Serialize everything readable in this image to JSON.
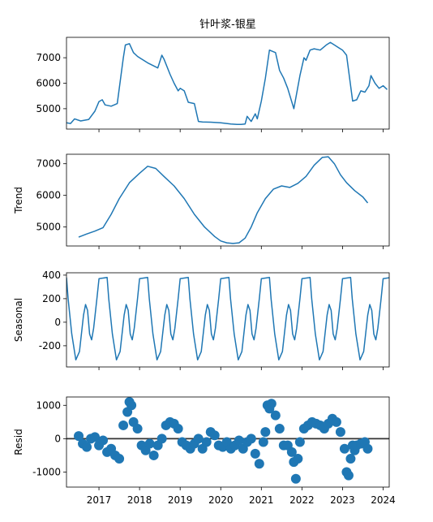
{
  "chart_data": [
    {
      "type": "line",
      "title": "针叶浆-银星",
      "ylabel": "",
      "xlim": [
        2016.2,
        2024.15
      ],
      "ylim": [
        4200,
        7800
      ],
      "yticks": [
        5000,
        6000,
        7000
      ],
      "xticks": [
        2017,
        2018,
        2019,
        2020,
        2021,
        2022,
        2023,
        2024
      ],
      "x": [
        2016.2,
        2016.3,
        2016.4,
        2016.55,
        2016.75,
        2016.9,
        2017.0,
        2017.08,
        2017.15,
        2017.3,
        2017.45,
        2017.6,
        2017.65,
        2017.75,
        2017.85,
        2017.95,
        2018.0,
        2018.2,
        2018.45,
        2018.55,
        2018.6,
        2018.75,
        2018.85,
        2018.95,
        2019.0,
        2019.1,
        2019.2,
        2019.35,
        2019.45,
        2019.55,
        2019.75,
        2020.0,
        2020.25,
        2020.4,
        2020.5,
        2020.6,
        2020.65,
        2020.75,
        2020.85,
        2020.9,
        2021.0,
        2021.1,
        2021.2,
        2021.35,
        2021.45,
        2021.55,
        2021.65,
        2021.8,
        2021.95,
        2022.05,
        2022.1,
        2022.2,
        2022.3,
        2022.45,
        2022.6,
        2022.7,
        2022.8,
        2022.9,
        2023.0,
        2023.1,
        2023.15,
        2023.25,
        2023.35,
        2023.45,
        2023.55,
        2023.65,
        2023.7,
        2023.8,
        2023.9,
        2024.0,
        2024.1
      ],
      "values": [
        4450,
        4420,
        4600,
        4520,
        4580,
        4900,
        5280,
        5350,
        5150,
        5100,
        5200,
        7000,
        7500,
        7550,
        7200,
        7050,
        7000,
        6800,
        6600,
        7100,
        6950,
        6350,
        6000,
        5700,
        5800,
        5700,
        5250,
        5200,
        4500,
        4480,
        4470,
        4450,
        4400,
        4380,
        4380,
        4400,
        4700,
        4500,
        4800,
        4600,
        5300,
        6200,
        7300,
        7200,
        6500,
        6200,
        5800,
        5000,
        6300,
        7000,
        6900,
        7300,
        7350,
        7300,
        7500,
        7600,
        7500,
        7400,
        7300,
        7100,
        6500,
        5300,
        5350,
        5700,
        5650,
        5900,
        6300,
        6000,
        5800,
        5900,
        5750
      ]
    },
    {
      "type": "line",
      "ylabel": "Trend",
      "xlim": [
        2016.2,
        2024.15
      ],
      "ylim": [
        4400,
        7300
      ],
      "yticks": [
        5000,
        6000,
        7000
      ],
      "xticks": [
        2017,
        2018,
        2019,
        2020,
        2021,
        2022,
        2023,
        2024
      ],
      "x": [
        2016.5,
        2016.7,
        2016.9,
        2017.1,
        2017.3,
        2017.5,
        2017.75,
        2018.0,
        2018.2,
        2018.4,
        2018.6,
        2018.85,
        2019.1,
        2019.35,
        2019.6,
        2019.85,
        2020.0,
        2020.15,
        2020.3,
        2020.45,
        2020.6,
        2020.75,
        2020.9,
        2021.1,
        2021.3,
        2021.5,
        2021.7,
        2021.9,
        2022.1,
        2022.3,
        2022.5,
        2022.65,
        2022.8,
        2022.95,
        2023.1,
        2023.3,
        2023.5,
        2023.62
      ],
      "values": [
        4680,
        4780,
        4870,
        4980,
        5400,
        5900,
        6400,
        6700,
        6920,
        6850,
        6600,
        6300,
        5900,
        5400,
        5000,
        4700,
        4560,
        4500,
        4480,
        4500,
        4650,
        5000,
        5450,
        5900,
        6200,
        6300,
        6250,
        6380,
        6600,
        6950,
        7200,
        7220,
        7000,
        6650,
        6400,
        6150,
        5950,
        5760
      ]
    },
    {
      "type": "line",
      "ylabel": "Seasonal",
      "xlim": [
        2016.2,
        2024.15
      ],
      "ylim": [
        -380,
        420
      ],
      "yticks": [
        -200,
        0,
        200,
        400
      ],
      "xticks": [
        2017,
        2018,
        2019,
        2020,
        2021,
        2022,
        2023,
        2024
      ],
      "x": [
        2016.2,
        2016.24,
        2016.33,
        2016.43,
        2016.52,
        2016.62,
        2016.67,
        2016.72,
        2016.77,
        2016.82,
        2016.87,
        2016.95,
        2017.0
      ],
      "values": [
        380,
        200,
        -100,
        -320,
        -250,
        60,
        150,
        100,
        -100,
        -150,
        -50,
        200,
        370
      ],
      "period": 1
    },
    {
      "type": "scatter",
      "ylabel": "Resid",
      "xlim": [
        2016.2,
        2024.15
      ],
      "ylim": [
        -1450,
        1250
      ],
      "yticks": [
        -1000,
        0,
        1000
      ],
      "xticks": [
        2017,
        2018,
        2019,
        2020,
        2021,
        2022,
        2023,
        2024
      ],
      "xticklabels": [
        "2017",
        "2018",
        "2019",
        "2020",
        "2021",
        "2022",
        "2023",
        "2024"
      ],
      "x": [
        2016.5,
        2016.6,
        2016.7,
        2016.8,
        2016.9,
        2017.0,
        2017.1,
        2017.2,
        2017.3,
        2017.4,
        2017.5,
        2017.6,
        2017.7,
        2017.75,
        2017.8,
        2017.85,
        2017.95,
        2018.05,
        2018.15,
        2018.25,
        2018.35,
        2018.45,
        2018.55,
        2018.65,
        2018.75,
        2018.85,
        2018.95,
        2019.05,
        2019.15,
        2019.25,
        2019.35,
        2019.45,
        2019.55,
        2019.65,
        2019.75,
        2019.85,
        2019.95,
        2020.05,
        2020.15,
        2020.25,
        2020.35,
        2020.45,
        2020.55,
        2020.65,
        2020.75,
        2020.85,
        2020.95,
        2021.05,
        2021.1,
        2021.15,
        2021.2,
        2021.25,
        2021.35,
        2021.45,
        2021.55,
        2021.65,
        2021.75,
        2021.8,
        2021.85,
        2021.9,
        2021.95,
        2022.05,
        2022.15,
        2022.25,
        2022.35,
        2022.45,
        2022.55,
        2022.65,
        2022.75,
        2022.85,
        2022.95,
        2023.05,
        2023.1,
        2023.15,
        2023.2,
        2023.25,
        2023.3,
        2023.35,
        2023.45,
        2023.55,
        2023.62
      ],
      "values": [
        80,
        -150,
        -250,
        0,
        50,
        -200,
        -50,
        -400,
        -300,
        -500,
        -600,
        400,
        800,
        1100,
        1000,
        500,
        300,
        -200,
        -350,
        -150,
        -500,
        -200,
        0,
        400,
        500,
        450,
        300,
        -100,
        -200,
        -300,
        -150,
        0,
        -300,
        -100,
        200,
        100,
        -200,
        -250,
        -100,
        -300,
        -200,
        -50,
        -300,
        -100,
        0,
        -450,
        -750,
        -100,
        200,
        1000,
        900,
        1050,
        700,
        300,
        -200,
        -200,
        -400,
        -700,
        -1200,
        -600,
        -100,
        300,
        400,
        500,
        450,
        400,
        300,
        450,
        600,
        500,
        200,
        -300,
        -1000,
        -1100,
        -600,
        -200,
        -350,
        -200,
        -150,
        -100,
        -300
      ]
    }
  ]
}
